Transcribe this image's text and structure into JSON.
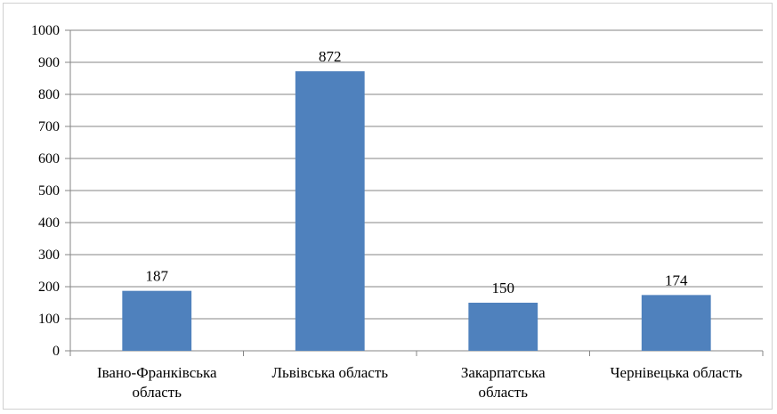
{
  "chart_data": {
    "type": "bar",
    "categories": [
      "Івано-Франківська область",
      "Львівська область",
      "Закарпатська область",
      "Чернівецька область"
    ],
    "category_label_lines": [
      [
        "Івано-Франківська",
        "область"
      ],
      [
        "Львівська область"
      ],
      [
        "Закарпатська",
        "область"
      ],
      [
        "Чернівецька область"
      ]
    ],
    "values": [
      187,
      872,
      150,
      174
    ],
    "data_labels": [
      "187",
      "872",
      "150",
      "174"
    ],
    "ylim": [
      0,
      1000
    ],
    "yticks": [
      0,
      100,
      200,
      300,
      400,
      500,
      600,
      700,
      800,
      900,
      1000
    ],
    "ytick_labels": [
      "0",
      "100",
      "200",
      "300",
      "400",
      "500",
      "600",
      "700",
      "800",
      "900",
      "1000"
    ],
    "title": "",
    "xlabel": "",
    "ylabel": "",
    "grid": true,
    "legend": "none",
    "colors": {
      "bar": "#4f81bd",
      "grid": "#868686",
      "axis": "#868686"
    }
  }
}
